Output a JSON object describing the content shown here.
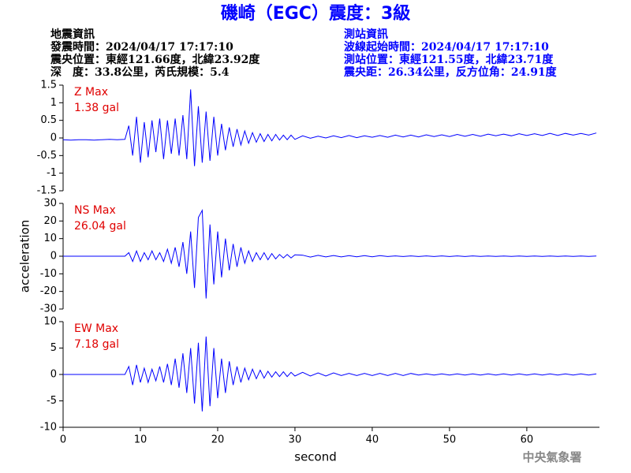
{
  "header": {
    "title": "磯崎（EGC）震度：3級",
    "left": [
      "地震資訊",
      "發震時間：2024/04/17 17:17:10",
      "震央位置：東經121.66度，北緯23.92度",
      "深　度：33.8公里，芮氏規模：5.4"
    ],
    "right": [
      "測站資訊",
      "波線起始時間：2024/04/17 17:17:10",
      "測站位置：東經121.55度，北緯23.71度",
      "震央距：26.34公里，反方位角：24.91度"
    ],
    "footer": "中央氣象署"
  },
  "chart_data": [
    {
      "type": "line",
      "label": "Z Max",
      "max_label": "1.38 gal",
      "color": "#0000ff",
      "xlim": [
        0,
        69.4
      ],
      "ylim": [
        -1.5,
        1.5
      ],
      "yticks": [
        -1.5,
        -1,
        -0.5,
        0,
        0.5,
        1,
        1.5
      ],
      "x": [
        0,
        1,
        2,
        3,
        4,
        5,
        6,
        7,
        8,
        8.5,
        9,
        9.5,
        10,
        10.5,
        11,
        11.5,
        12,
        12.5,
        13,
        13.5,
        14,
        14.5,
        15,
        15.5,
        16,
        16.5,
        17,
        17.5,
        18,
        18.5,
        19,
        19.5,
        20,
        20.5,
        21,
        21.5,
        22,
        22.5,
        23,
        23.5,
        24,
        24.5,
        25,
        25.5,
        26,
        26.5,
        27,
        27.5,
        28,
        28.5,
        29,
        29.5,
        30,
        31,
        32,
        33,
        34,
        35,
        36,
        37,
        38,
        39,
        40,
        41,
        42,
        43,
        44,
        45,
        46,
        47,
        48,
        49,
        50,
        51,
        52,
        53,
        54,
        55,
        56,
        57,
        58,
        59,
        60,
        61,
        62,
        63,
        64,
        65,
        66,
        67,
        68,
        69
      ],
      "values": [
        -0.05,
        -0.06,
        -0.05,
        -0.05,
        -0.06,
        -0.05,
        -0.04,
        -0.05,
        -0.04,
        0.35,
        -0.5,
        0.6,
        -0.7,
        0.45,
        -0.55,
        0.5,
        -0.4,
        0.55,
        -0.6,
        0.5,
        -0.45,
        0.55,
        -0.5,
        0.65,
        -0.6,
        1.38,
        -0.8,
        0.9,
        -0.7,
        0.75,
        -0.65,
        0.6,
        -0.5,
        0.4,
        -0.35,
        0.3,
        -0.25,
        0.25,
        -0.2,
        0.2,
        -0.15,
        0.15,
        -0.12,
        0.12,
        -0.1,
        0.1,
        -0.08,
        0.1,
        -0.06,
        0.08,
        -0.05,
        0.08,
        -0.04,
        0.06,
        -0.01,
        0.05,
        0,
        0.06,
        0.01,
        0.07,
        0.01,
        0.06,
        0.02,
        0.07,
        0.02,
        0.08,
        0.03,
        0.08,
        0.03,
        0.09,
        0.04,
        0.09,
        0.04,
        0.1,
        0.05,
        0.1,
        0.05,
        0.11,
        0.06,
        0.11,
        0.06,
        0.12,
        0.07,
        0.12,
        0.07,
        0.13,
        0.07,
        0.13,
        0.08,
        0.13,
        0.08,
        0.14
      ]
    },
    {
      "type": "line",
      "label": "NS Max",
      "max_label": "26.04 gal",
      "color": "#0000ff",
      "ylabel": "acceleration",
      "xlim": [
        0,
        69.4
      ],
      "ylim": [
        -30,
        30
      ],
      "yticks": [
        -30,
        -20,
        -10,
        0,
        10,
        20,
        30
      ],
      "x": [
        0,
        1,
        2,
        3,
        4,
        5,
        6,
        7,
        8,
        8.5,
        9,
        9.5,
        10,
        10.5,
        11,
        11.5,
        12,
        12.5,
        13,
        13.5,
        14,
        14.5,
        15,
        15.5,
        16,
        16.5,
        17,
        17.5,
        18,
        18.5,
        19,
        19.5,
        20,
        20.5,
        21,
        21.5,
        22,
        22.5,
        23,
        23.5,
        24,
        24.5,
        25,
        25.5,
        26,
        26.5,
        27,
        27.5,
        28,
        28.5,
        29,
        29.5,
        30,
        31,
        32,
        33,
        34,
        35,
        36,
        37,
        38,
        39,
        40,
        41,
        42,
        43,
        44,
        45,
        46,
        47,
        48,
        49,
        50,
        51,
        52,
        53,
        54,
        55,
        56,
        57,
        58,
        59,
        60,
        61,
        62,
        63,
        64,
        65,
        66,
        67,
        68,
        69
      ],
      "values": [
        0,
        0,
        0,
        0,
        0,
        0,
        0,
        0,
        0,
        2,
        -3,
        3,
        -3,
        2,
        -2,
        3,
        -2,
        2,
        -3,
        4,
        -4,
        5,
        -6,
        8,
        -10,
        14,
        -18,
        22,
        26.04,
        -24,
        18,
        -16,
        14,
        -12,
        10,
        -8,
        7,
        -6,
        5,
        -4,
        3,
        -3,
        2,
        -2,
        2,
        -2,
        1.5,
        -1.5,
        1,
        -1,
        1,
        -1,
        0.8,
        0.6,
        -0.5,
        0.5,
        -0.4,
        0.4,
        -0.4,
        0.3,
        -0.3,
        0.3,
        -0.3,
        0.3,
        -0.2,
        0.2,
        -0.2,
        0.2,
        -0.2,
        0.2,
        -0.2,
        0.2,
        -0.2,
        0.2,
        -0.2,
        0.2,
        -0.1,
        0.1,
        -0.1,
        0.1,
        -0.1,
        0.1,
        -0.1,
        0.1,
        -0.1,
        0.1,
        -0.1,
        0.1,
        -0.1,
        0.1,
        -0.1,
        0.1
      ]
    },
    {
      "type": "line",
      "label": "EW Max",
      "max_label": "7.18 gal",
      "color": "#0000ff",
      "xlabel": "second",
      "xlim": [
        0,
        69.4
      ],
      "ylim": [
        -10,
        10
      ],
      "yticks": [
        -10,
        -5,
        0,
        5,
        10
      ],
      "xticks": [
        0,
        10,
        20,
        30,
        40,
        50,
        60
      ],
      "x": [
        0,
        1,
        2,
        3,
        4,
        5,
        6,
        7,
        8,
        8.5,
        9,
        9.5,
        10,
        10.5,
        11,
        11.5,
        12,
        12.5,
        13,
        13.5,
        14,
        14.5,
        15,
        15.5,
        16,
        16.5,
        17,
        17.5,
        18,
        18.5,
        19,
        19.5,
        20,
        20.5,
        21,
        21.5,
        22,
        22.5,
        23,
        23.5,
        24,
        24.5,
        25,
        25.5,
        26,
        26.5,
        27,
        27.5,
        28,
        28.5,
        29,
        29.5,
        30,
        31,
        32,
        33,
        34,
        35,
        36,
        37,
        38,
        39,
        40,
        41,
        42,
        43,
        44,
        45,
        46,
        47,
        48,
        49,
        50,
        51,
        52,
        53,
        54,
        55,
        56,
        57,
        58,
        59,
        60,
        61,
        62,
        63,
        64,
        65,
        66,
        67,
        68,
        69
      ],
      "values": [
        0,
        0,
        0,
        0,
        0,
        0,
        0,
        0,
        0,
        1.5,
        -2,
        1.8,
        -1.5,
        1.2,
        -1.5,
        1,
        -1.2,
        1.5,
        -1.5,
        2,
        -2,
        3,
        -2.5,
        4,
        -3.5,
        5,
        -5.5,
        6,
        -7,
        7.18,
        -6,
        5,
        -4.5,
        3,
        -3.5,
        2.5,
        -2,
        1.5,
        -1.5,
        1.2,
        -1,
        1,
        -0.8,
        0.8,
        -0.7,
        0.6,
        -0.5,
        0.5,
        -0.4,
        0.5,
        -0.4,
        0.4,
        -0.3,
        0.4,
        -0.3,
        0.3,
        -0.3,
        0.3,
        -0.2,
        0.2,
        -0.2,
        0.2,
        -0.2,
        0.2,
        -0.2,
        0.2,
        -0.2,
        0.2,
        -0.1,
        0.1,
        -0.1,
        0.1,
        -0.1,
        0.1,
        -0.1,
        0.1,
        -0.1,
        0.1,
        -0.1,
        0.1,
        -0.1,
        0.1,
        -0.1,
        0.1,
        -0.1,
        0.1,
        -0.1,
        0.1,
        -0.1,
        0.1,
        -0.1,
        0.1
      ]
    }
  ]
}
